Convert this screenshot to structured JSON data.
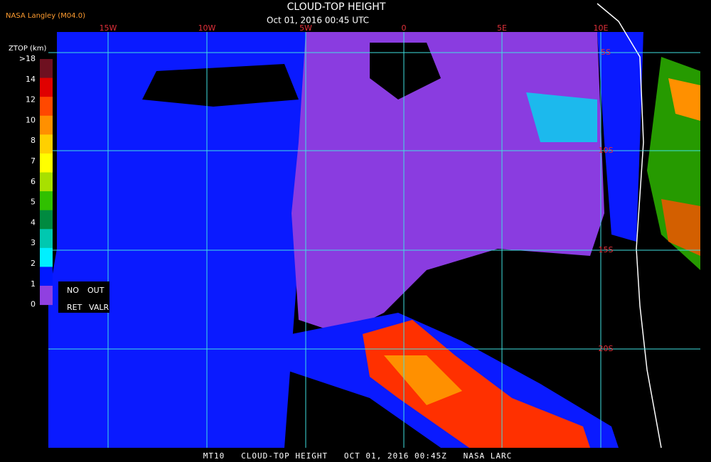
{
  "header": {
    "title": "CLOUD-TOP HEIGHT",
    "subtitle": "Oct 01, 2016 00:45 UTC",
    "source": "NASA Langley (M04.0)"
  },
  "legend": {
    "title": "ZTOP (km)",
    "labels": [
      ">18",
      "14",
      "12",
      "10",
      "8",
      "7",
      "6",
      "5",
      "4",
      "3",
      "2",
      "1",
      "0"
    ],
    "colors": [
      "#6e1020",
      "#e00000",
      "#ff4800",
      "#ff9000",
      "#ffd000",
      "#ffff00",
      "#a8e000",
      "#30c000",
      "#008a40",
      "#00c8b0",
      "#00f0ff",
      "#0018ff",
      "#9040e0"
    ],
    "notes": [
      "NO",
      "OUT",
      "RET",
      "VALR"
    ]
  },
  "map": {
    "longitudes": [
      "15W",
      "10W",
      "5W",
      "0",
      "5E",
      "10E"
    ],
    "latitudes": [
      "5S",
      "10S",
      "15S",
      "20S"
    ]
  },
  "footer": {
    "text": "MT10   CLOUD-TOP HEIGHT   OCT 01, 2016 00:45Z   NASA LARC"
  }
}
